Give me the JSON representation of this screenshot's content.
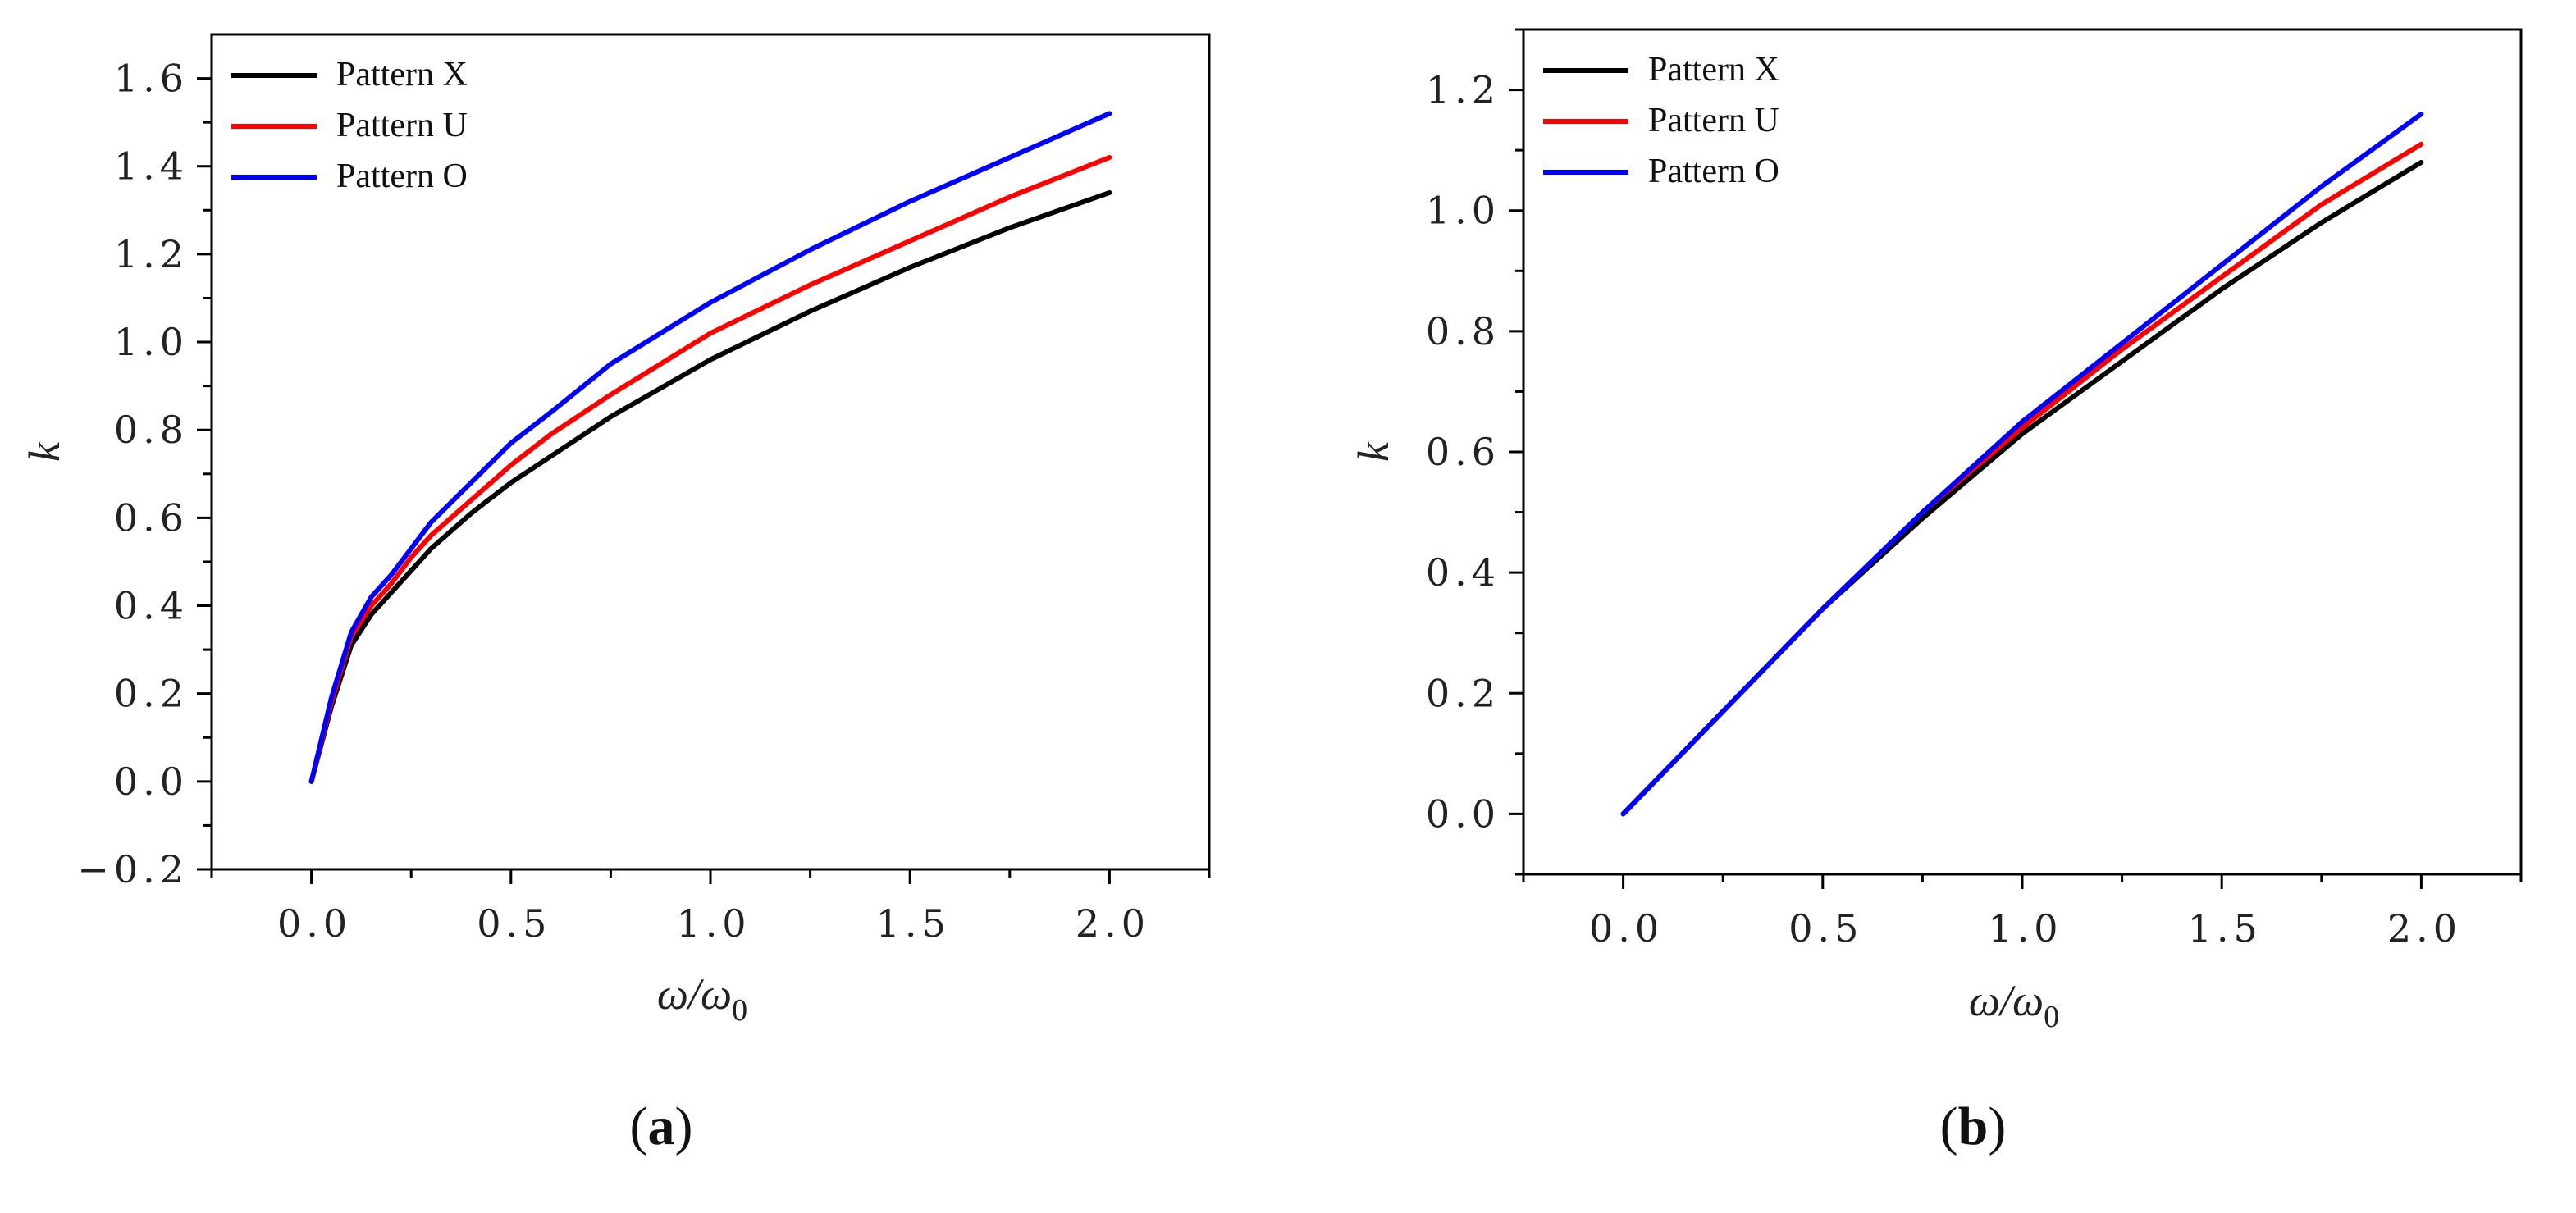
{
  "chart_data": [
    {
      "type": "line",
      "panel_label": "(a)",
      "xlabel": "ω/ω0",
      "xlabel_main": "ω/ω",
      "xlabel_sub": "0",
      "ylabel": "k",
      "xlim": [
        -0.25,
        2.25
      ],
      "ylim": [
        -0.2,
        1.7
      ],
      "xticks": [
        0.0,
        0.5,
        1.0,
        1.5,
        2.0
      ],
      "xtick_labels": [
        "0.0",
        "0.5",
        "1.0",
        "1.5",
        "2.0"
      ],
      "xminor": [
        -0.25,
        0.25,
        0.75,
        1.25,
        1.75,
        2.25
      ],
      "yticks": [
        -0.2,
        0.0,
        0.2,
        0.4,
        0.6,
        0.8,
        1.0,
        1.2,
        1.4,
        1.6
      ],
      "ytick_labels": [
        "−0.2",
        "0.0",
        "0.2",
        "0.4",
        "0.6",
        "0.8",
        "1.0",
        "1.2",
        "1.4",
        "1.6"
      ],
      "yminor": [
        -0.1,
        0.1,
        0.3,
        0.5,
        0.7,
        0.9,
        1.1,
        1.3,
        1.5
      ],
      "legend_position": "top-left",
      "x": [
        0.0,
        0.05,
        0.1,
        0.15,
        0.2,
        0.25,
        0.3,
        0.4,
        0.5,
        0.6,
        0.75,
        1.0,
        1.25,
        1.5,
        1.75,
        2.0
      ],
      "series": [
        {
          "name": "Pattern X",
          "color": "#000000",
          "values": [
            0.0,
            0.17,
            0.31,
            0.38,
            0.43,
            0.48,
            0.53,
            0.61,
            0.68,
            0.74,
            0.83,
            0.96,
            1.07,
            1.17,
            1.26,
            1.34
          ]
        },
        {
          "name": "Pattern U",
          "color": "#ff0000",
          "values": [
            0.0,
            0.18,
            0.33,
            0.4,
            0.45,
            0.51,
            0.56,
            0.64,
            0.72,
            0.79,
            0.88,
            1.02,
            1.13,
            1.23,
            1.33,
            1.42
          ]
        },
        {
          "name": "Pattern O",
          "color": "#0000ff",
          "values": [
            0.0,
            0.19,
            0.34,
            0.42,
            0.47,
            0.53,
            0.59,
            0.68,
            0.77,
            0.84,
            0.95,
            1.09,
            1.21,
            1.32,
            1.42,
            1.52
          ]
        }
      ]
    },
    {
      "type": "line",
      "panel_label": "(b)",
      "xlabel": "ω/ω0",
      "xlabel_main": "ω/ω",
      "xlabel_sub": "0",
      "ylabel": "k",
      "xlim": [
        -0.25,
        2.25
      ],
      "ylim": [
        -0.1,
        1.3
      ],
      "xticks": [
        0.0,
        0.5,
        1.0,
        1.5,
        2.0
      ],
      "xtick_labels": [
        "0.0",
        "0.5",
        "1.0",
        "1.5",
        "2.0"
      ],
      "xminor": [
        -0.25,
        0.25,
        0.75,
        1.25,
        1.75,
        2.25
      ],
      "yticks": [
        0.0,
        0.2,
        0.4,
        0.6,
        0.8,
        1.0,
        1.2
      ],
      "ytick_labels": [
        "0.0",
        "0.2",
        "0.4",
        "0.6",
        "0.8",
        "1.0",
        "1.2"
      ],
      "yminor": [
        -0.1,
        0.1,
        0.3,
        0.5,
        0.7,
        0.9,
        1.1,
        1.3
      ],
      "legend_position": "top-left",
      "x": [
        0.0,
        0.25,
        0.5,
        0.75,
        1.0,
        1.25,
        1.5,
        1.75,
        2.0
      ],
      "series": [
        {
          "name": "Pattern X",
          "color": "#000000",
          "values": [
            0.0,
            0.17,
            0.34,
            0.49,
            0.63,
            0.75,
            0.87,
            0.98,
            1.08
          ]
        },
        {
          "name": "Pattern U",
          "color": "#ff0000",
          "values": [
            0.0,
            0.17,
            0.34,
            0.5,
            0.64,
            0.77,
            0.89,
            1.01,
            1.11
          ]
        },
        {
          "name": "Pattern O",
          "color": "#0000ff",
          "values": [
            0.0,
            0.17,
            0.34,
            0.5,
            0.65,
            0.78,
            0.91,
            1.04,
            1.16
          ]
        }
      ]
    }
  ]
}
